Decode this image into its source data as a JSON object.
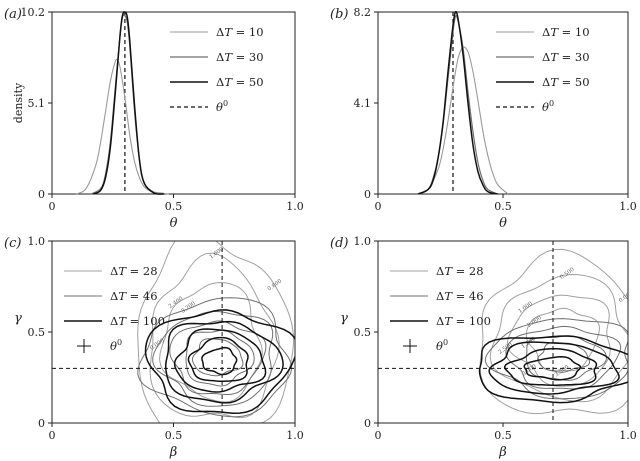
{
  "chart_data": [
    {
      "panel_label": "(a)",
      "type": "line",
      "xlabel": "θ",
      "ylabel": "density",
      "xlim": [
        0,
        1
      ],
      "ylim": [
        0,
        10.2
      ],
      "xticks": [
        "0",
        "0.5",
        "1.0"
      ],
      "yticks": [
        "0",
        "5.1",
        "10.2"
      ],
      "truth": 0.3,
      "series": [
        {
          "name": "ΔT = 10",
          "color": "#9a9a9a",
          "width": 1.1,
          "x": [
            0.1,
            0.14,
            0.18,
            0.2,
            0.22,
            0.24,
            0.26,
            0.27,
            0.28,
            0.3,
            0.32,
            0.34,
            0.36,
            0.38,
            0.4,
            0.42,
            0.45,
            0.48
          ],
          "y": [
            0,
            0.3,
            1.6,
            2.9,
            4.6,
            6.3,
            7.4,
            7.5,
            7.1,
            5.4,
            3.3,
            1.8,
            0.9,
            0.4,
            0.2,
            0.1,
            0.05,
            0
          ]
        },
        {
          "name": "ΔT = 30",
          "color": "#6e6e6e",
          "width": 1.2,
          "x": [
            0.16,
            0.2,
            0.22,
            0.24,
            0.26,
            0.28,
            0.29,
            0.3,
            0.31,
            0.32,
            0.34,
            0.36,
            0.38,
            0.42,
            0.46
          ],
          "y": [
            0,
            0.3,
            1.1,
            2.9,
            5.9,
            8.9,
            9.9,
            10.0,
            9.6,
            8.3,
            4.6,
            1.9,
            0.6,
            0.1,
            0
          ]
        },
        {
          "name": "ΔT = 50",
          "color": "#111111",
          "width": 1.5,
          "x": [
            0.17,
            0.2,
            0.22,
            0.24,
            0.26,
            0.28,
            0.29,
            0.3,
            0.31,
            0.32,
            0.34,
            0.36,
            0.38,
            0.42,
            0.46
          ],
          "y": [
            0,
            0.2,
            0.9,
            2.6,
            5.6,
            8.9,
            10.0,
            10.2,
            9.9,
            8.6,
            4.9,
            1.9,
            0.6,
            0.05,
            0
          ]
        }
      ],
      "legend": [
        "ΔT = 10",
        "ΔT = 30",
        "ΔT = 50",
        "θ⁰"
      ]
    },
    {
      "panel_label": "(b)",
      "type": "line",
      "xlabel": "θ",
      "ylabel": "",
      "xlim": [
        0,
        1
      ],
      "ylim": [
        0,
        8.2
      ],
      "xticks": [
        "0",
        "0.5",
        "1.0"
      ],
      "yticks": [
        "0",
        "4.1",
        "8.2"
      ],
      "truth": 0.3,
      "series": [
        {
          "name": "ΔT = 10",
          "color": "#9a9a9a",
          "width": 1.1,
          "x": [
            0.16,
            0.2,
            0.24,
            0.26,
            0.28,
            0.3,
            0.32,
            0.34,
            0.36,
            0.38,
            0.4,
            0.42,
            0.44,
            0.46,
            0.48,
            0.52
          ],
          "y": [
            0,
            0.2,
            1.1,
            2.0,
            3.3,
            4.8,
            6.1,
            6.6,
            6.4,
            5.5,
            4.2,
            2.8,
            1.7,
            0.9,
            0.4,
            0
          ]
        },
        {
          "name": "ΔT = 30",
          "color": "#6e6e6e",
          "width": 1.2,
          "x": [
            0.16,
            0.2,
            0.22,
            0.24,
            0.26,
            0.28,
            0.3,
            0.31,
            0.32,
            0.34,
            0.36,
            0.38,
            0.4,
            0.42,
            0.44,
            0.48
          ],
          "y": [
            0,
            0.2,
            0.7,
            1.6,
            3.1,
            5.2,
            7.3,
            8.0,
            7.8,
            6.6,
            4.6,
            2.8,
            1.4,
            0.6,
            0.2,
            0
          ]
        },
        {
          "name": "ΔT = 50",
          "color": "#111111",
          "width": 1.5,
          "x": [
            0.16,
            0.2,
            0.22,
            0.24,
            0.26,
            0.28,
            0.3,
            0.31,
            0.32,
            0.34,
            0.36,
            0.38,
            0.4,
            0.42,
            0.44,
            0.48
          ],
          "y": [
            0,
            0.2,
            0.6,
            1.6,
            3.2,
            5.5,
            7.6,
            8.2,
            7.9,
            6.3,
            4.1,
            2.2,
            1.0,
            0.4,
            0.1,
            0
          ]
        }
      ],
      "legend": [
        "ΔT = 10",
        "ΔT = 30",
        "ΔT = 50",
        "θ⁰"
      ]
    },
    {
      "panel_label": "(c)",
      "type": "contour",
      "xlabel": "β",
      "ylabel": "γ",
      "xlim": [
        0,
        1
      ],
      "ylim": [
        0,
        1
      ],
      "xticks": [
        "0",
        "0.5",
        "1.0"
      ],
      "yticks": [
        "0",
        "0.5",
        "1.0"
      ],
      "truth": {
        "beta": 0.7,
        "gamma": 0.3
      },
      "legend": [
        "ΔT = 28",
        "ΔT = 46",
        "ΔT = 100",
        "θ⁰"
      ],
      "contour_labels": [
        "0.800",
        "1.600",
        "2.400",
        "3.200",
        "0.000"
      ],
      "contours": [
        {
          "series": "ΔT = 28",
          "color": "#a0a0a0",
          "width": 1.0,
          "cx": 0.66,
          "cy": 0.44,
          "rings": [
            [
              0.32,
              0.56
            ],
            [
              0.26,
              0.44
            ],
            [
              0.2,
              0.32
            ]
          ]
        },
        {
          "series": "ΔT = 46",
          "color": "#707070",
          "width": 1.0,
          "cx": 0.68,
          "cy": 0.36,
          "rings": [
            [
              0.3,
              0.32
            ],
            [
              0.24,
              0.26
            ],
            [
              0.19,
              0.2
            ],
            [
              0.14,
              0.15
            ],
            [
              0.1,
              0.1
            ]
          ]
        },
        {
          "series": "ΔT = 100",
          "color": "#111111",
          "width": 1.5,
          "cx": 0.69,
          "cy": 0.34,
          "rings": [
            [
              0.3,
              0.28
            ],
            [
              0.24,
              0.22
            ],
            [
              0.18,
              0.17
            ],
            [
              0.12,
              0.12
            ],
            [
              0.07,
              0.07
            ]
          ]
        }
      ]
    },
    {
      "panel_label": "(d)",
      "type": "contour",
      "xlabel": "β",
      "ylabel": "γ",
      "xlim": [
        0,
        1
      ],
      "ylim": [
        0,
        1
      ],
      "xticks": [
        "0",
        "0.5",
        "1.0"
      ],
      "yticks": [
        "0",
        "0.5",
        "1.0"
      ],
      "truth": {
        "beta": 0.7,
        "gamma": 0.3
      },
      "legend": [
        "ΔT = 28",
        "ΔT = 46",
        "ΔT = 100",
        "θ⁰"
      ],
      "contour_labels": [
        "0.000",
        "0.500",
        "1.000",
        "1.500",
        "2.000",
        "2.500",
        "3.000",
        "3.500"
      ],
      "contours": [
        {
          "series": "ΔT = 28",
          "color": "#a0a0a0",
          "width": 1.0,
          "cx": 0.74,
          "cy": 0.46,
          "rings": [
            [
              0.34,
              0.44
            ],
            [
              0.27,
              0.34
            ],
            [
              0.2,
              0.25
            ],
            [
              0.14,
              0.17
            ]
          ]
        },
        {
          "series": "ΔT = 46",
          "color": "#707070",
          "width": 1.0,
          "cx": 0.74,
          "cy": 0.36,
          "rings": [
            [
              0.28,
              0.22
            ],
            [
              0.22,
              0.17
            ],
            [
              0.16,
              0.12
            ],
            [
              0.1,
              0.08
            ]
          ]
        },
        {
          "series": "ΔT = 100",
          "color": "#111111",
          "width": 1.5,
          "cx": 0.7,
          "cy": 0.3,
          "rings": [
            [
              0.32,
              0.18
            ],
            [
              0.25,
              0.14
            ],
            [
              0.18,
              0.1
            ],
            [
              0.11,
              0.06
            ]
          ]
        }
      ]
    }
  ]
}
